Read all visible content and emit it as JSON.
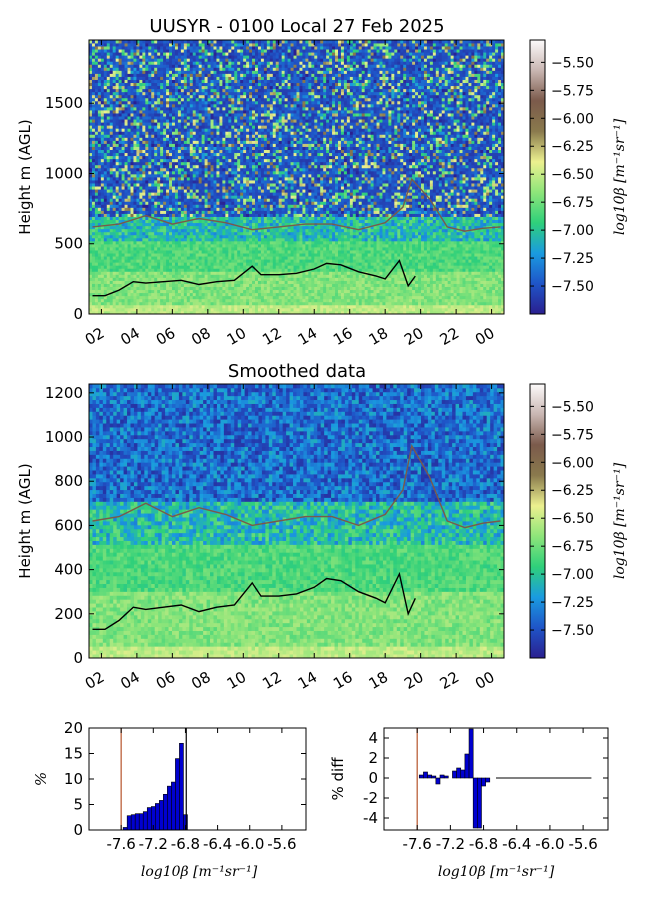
{
  "colorscale": {
    "stops": [
      "#2a1f8f",
      "#1f55c8",
      "#1a9be0",
      "#2fd07a",
      "#8ee57a",
      "#ecf08f",
      "#8a7a4d",
      "#7b5a4b",
      "#c9b6b2",
      "#fdfbfb"
    ],
    "clim": [
      -7.75,
      -5.3
    ]
  },
  "top_panel": {
    "title": "UUSYR - 0100 Local 27 Feb 2025",
    "ylabel": "Height m (AGL)",
    "xticklabels": [
      "02",
      "04",
      "06",
      "08",
      "10",
      "12",
      "14",
      "16",
      "18",
      "20",
      "22",
      "00"
    ],
    "yticklabels": [
      "0",
      "500",
      "1000",
      "1500"
    ],
    "colorbar_ticks": [
      "-5.50",
      "-5.75",
      "-6.00",
      "-6.25",
      "-6.50",
      "-6.75",
      "-7.00",
      "-7.25",
      "-7.50"
    ],
    "colorbar_label": "log10β [m⁻¹sr⁻¹]"
  },
  "middle_panel": {
    "title": "Smoothed data",
    "ylabel": "Height m (AGL)",
    "xticklabels": [
      "02",
      "04",
      "06",
      "08",
      "10",
      "12",
      "14",
      "16",
      "18",
      "20",
      "22",
      "00"
    ],
    "yticklabels": [
      "0",
      "200",
      "400",
      "600",
      "800",
      "1000",
      "1200"
    ],
    "colorbar_ticks": [
      "-5.50",
      "-5.75",
      "-6.00",
      "-6.25",
      "-6.50",
      "-6.75",
      "-7.00",
      "-7.25",
      "-7.50"
    ],
    "colorbar_label": "log10β [m⁻¹sr⁻¹]"
  },
  "hist_left": {
    "ylabel": "%",
    "xlabel": "log10β [m⁻¹sr⁻¹]",
    "xticklabels": [
      "-7.6",
      "-7.2",
      "-6.8",
      "-6.4",
      "-6.0",
      "-5.6"
    ],
    "yticklabels": [
      "0",
      "5",
      "10",
      "15",
      "20"
    ]
  },
  "hist_right": {
    "ylabel": "% diff",
    "xlabel": "log10β [m⁻¹sr⁻¹]",
    "xticklabels": [
      "-7.6",
      "-7.2",
      "-6.8",
      "-6.4",
      "-6.0",
      "-5.6"
    ],
    "yticklabels": [
      "4",
      "2",
      "0",
      "-2",
      "-4"
    ]
  },
  "chart_data": [
    {
      "type": "heatmap",
      "title": "UUSYR - 0100 Local 27 Feb 2025",
      "ylabel": "Height m (AGL)",
      "x_ticks": [
        "02",
        "04",
        "06",
        "08",
        "10",
        "12",
        "14",
        "16",
        "18",
        "20",
        "22",
        "00"
      ],
      "x_range_hours": [
        1.3,
        24.7
      ],
      "ylim": [
        0,
        1950
      ],
      "colorbar": {
        "label": "log10β [m⁻¹sr⁻¹]",
        "range": [
          -7.75,
          -5.3
        ]
      },
      "series": [
        {
          "name": "upper layer (brown)",
          "x": [
            1.5,
            3.0,
            4.5,
            6.0,
            7.5,
            9.0,
            10.5,
            12.0,
            13.5,
            15.0,
            16.5,
            18.0,
            19.0,
            19.5,
            20.5,
            21.5,
            22.5,
            23.5,
            24.5
          ],
          "y": [
            620,
            640,
            700,
            640,
            680,
            650,
            600,
            620,
            640,
            640,
            600,
            650,
            760,
            960,
            820,
            620,
            590,
            610,
            620
          ]
        },
        {
          "name": "lower layer (black)",
          "x": [
            1.5,
            2.2,
            3.0,
            3.8,
            4.5,
            5.5,
            6.5,
            7.5,
            8.5,
            9.5,
            10.5,
            11.0,
            12.0,
            13.0,
            14.0,
            14.7,
            15.5,
            16.5,
            17.5,
            18.0,
            18.8,
            19.3,
            19.7
          ],
          "y": [
            130,
            130,
            170,
            230,
            220,
            230,
            240,
            210,
            230,
            240,
            340,
            280,
            280,
            290,
            320,
            360,
            350,
            300,
            270,
            250,
            380,
            200,
            270
          ]
        }
      ]
    },
    {
      "type": "heatmap",
      "title": "Smoothed data",
      "ylabel": "Height m (AGL)",
      "x_ticks": [
        "02",
        "04",
        "06",
        "08",
        "10",
        "12",
        "14",
        "16",
        "18",
        "20",
        "22",
        "00"
      ],
      "x_range_hours": [
        1.3,
        24.7
      ],
      "ylim": [
        0,
        1240
      ],
      "colorbar": {
        "label": "log10β [m⁻¹sr⁻¹]",
        "range": [
          -7.75,
          -5.3
        ]
      },
      "series": [
        {
          "name": "upper layer (brown)",
          "x": [
            1.5,
            3.0,
            4.5,
            6.0,
            7.5,
            9.0,
            10.5,
            12.0,
            13.5,
            15.0,
            16.5,
            18.0,
            19.0,
            19.5,
            20.5,
            21.5,
            22.5,
            23.5,
            24.5
          ],
          "y": [
            620,
            640,
            700,
            640,
            680,
            650,
            600,
            620,
            640,
            640,
            600,
            650,
            760,
            960,
            820,
            620,
            590,
            610,
            620
          ]
        },
        {
          "name": "lower layer (black)",
          "x": [
            1.5,
            2.2,
            3.0,
            3.8,
            4.5,
            5.5,
            6.5,
            7.5,
            8.5,
            9.5,
            10.5,
            11.0,
            12.0,
            13.0,
            14.0,
            14.7,
            15.5,
            16.5,
            17.5,
            18.0,
            18.8,
            19.3,
            19.7
          ],
          "y": [
            130,
            130,
            170,
            230,
            220,
            230,
            240,
            210,
            230,
            240,
            340,
            280,
            280,
            290,
            320,
            360,
            350,
            300,
            270,
            250,
            380,
            200,
            270
          ]
        }
      ]
    },
    {
      "type": "bar",
      "ylabel": "%",
      "xlabel": "log10β [m⁻¹sr⁻¹]",
      "xlim": [
        -8.0,
        -5.3
      ],
      "ylim": [
        0,
        20
      ],
      "bin_width": 0.05,
      "bins": [
        -7.55,
        -7.5,
        -7.45,
        -7.4,
        -7.35,
        -7.3,
        -7.25,
        -7.2,
        -7.15,
        -7.1,
        -7.05,
        -7.0,
        -6.95,
        -6.9,
        -6.85,
        -6.8
      ],
      "values": [
        0.5,
        2.8,
        3.0,
        3.2,
        3.2,
        3.6,
        4.4,
        4.6,
        5.2,
        5.8,
        7.0,
        8.6,
        9.4,
        14.0,
        17.0,
        3.0
      ],
      "vlines": [
        {
          "x": -7.6,
          "color": "#b5532a"
        },
        {
          "x": -6.79,
          "color": "#000000"
        }
      ]
    },
    {
      "type": "bar",
      "ylabel": "% diff",
      "xlabel": "log10β [m⁻¹sr⁻¹]",
      "xlim": [
        -8.0,
        -5.3
      ],
      "ylim": [
        -5.2,
        5
      ],
      "bin_width": 0.05,
      "bins": [
        -7.55,
        -7.5,
        -7.45,
        -7.4,
        -7.35,
        -7.3,
        -7.25,
        -7.2,
        -7.15,
        -7.1,
        -7.05,
        -7.0,
        -6.95,
        -6.9,
        -6.85,
        -6.8,
        -6.75,
        -6.7,
        -6.65
      ],
      "values": [
        0.3,
        0.6,
        0.3,
        0.2,
        -0.6,
        0.3,
        0.2,
        0.0,
        0.7,
        1.0,
        0.8,
        2.4,
        4.9,
        -5.0,
        -5.0,
        -0.8,
        -0.4,
        0.0,
        0.0
      ],
      "flat_line": {
        "x": [
          -6.65,
          -5.5
        ],
        "y": 0
      },
      "vlines": [
        {
          "x": -7.6,
          "color": "#b5532a"
        }
      ]
    }
  ]
}
